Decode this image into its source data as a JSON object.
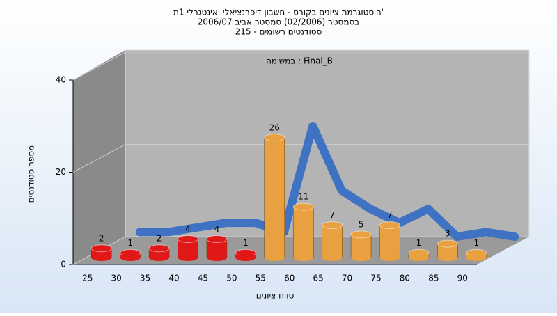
{
  "chart_data": {
    "type": "bar",
    "title": "היסטוגרמת ציונים בקורס - חשבון דיפרנציאלי ואינטגרלי 1ת'",
    "subtitle": [
      "בסמסטר (02/2006)  סמסטר אביב 2006/07",
      "סטודנטים רשומים - 215"
    ],
    "annotation": "במשימה : Final_B",
    "x_label": "טווח ציונים",
    "y_label": "מספר סטודנטים",
    "categories": [
      "25",
      "30",
      "35",
      "40",
      "45",
      "50",
      "55",
      "60",
      "65",
      "70",
      "75",
      "80",
      "85",
      "90"
    ],
    "values": [
      2,
      1,
      2,
      4,
      4,
      1,
      26,
      11,
      7,
      5,
      7,
      1,
      3,
      1
    ],
    "colors": [
      "#e01818",
      "#e01818",
      "#e01818",
      "#e01818",
      "#e01818",
      "#e01818",
      "#e8a040",
      "#e8a040",
      "#e8a040",
      "#e8a040",
      "#e8a040",
      "#e8a040",
      "#e8a040",
      "#e8a040"
    ],
    "curve": {
      "color": "#3a6fc4",
      "values": [
        1,
        1,
        2,
        3,
        3,
        1,
        24,
        10,
        6,
        3,
        6,
        0,
        1,
        0
      ]
    },
    "ylim": [
      0,
      40
    ],
    "yticks": [
      0,
      20,
      40
    ],
    "grid": true
  }
}
